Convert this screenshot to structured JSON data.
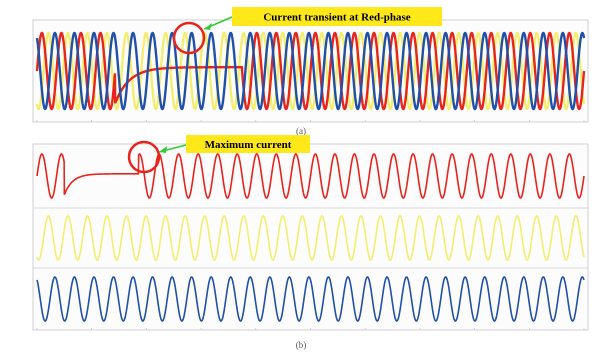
{
  "panels": {
    "a": {
      "label": "(a)",
      "annotation": "Current transient at Red-phase",
      "annotation_color": "#ffe81a",
      "arrow_color": "#33cc33",
      "circle_color": "#e8241c"
    },
    "b": {
      "label": "(b)",
      "annotation": "Maximum current",
      "annotation_color": "#ffe81a",
      "arrow_color": "#33cc33",
      "circle_color": "#e8241c"
    }
  },
  "chart_data": [
    {
      "id": "a",
      "type": "line",
      "title": "",
      "xlabel": "",
      "ylabel": "",
      "grid": false,
      "cycles": 28,
      "series": [
        {
          "color": "#e8241c",
          "amplitude": 1.0,
          "phase_deg": 0,
          "transient": {
            "start_cycle": 4,
            "end_cycle": 10.5,
            "level": 0.1
          }
        },
        {
          "color": "#f4ee70",
          "amplitude": 1.0,
          "phase_deg": -120
        },
        {
          "color": "#2050a8",
          "amplitude": 1.0,
          "phase_deg": 120
        }
      ]
    },
    {
      "id": "b",
      "type": "line",
      "title": "",
      "xlabel": "",
      "ylabel": "",
      "grid": false,
      "cycles": 28,
      "subplots": [
        {
          "color": "#e8241c",
          "amplitude": 1.0,
          "phase_deg": 0,
          "transient": {
            "start_cycle": 1.4,
            "end_cycle": 5.2,
            "level": 0.1
          }
        },
        {
          "color": "#f4ee70",
          "amplitude": 1.0,
          "phase_deg": -120
        },
        {
          "color": "#2050a8",
          "amplitude": 1.0,
          "phase_deg": 120
        }
      ]
    }
  ]
}
